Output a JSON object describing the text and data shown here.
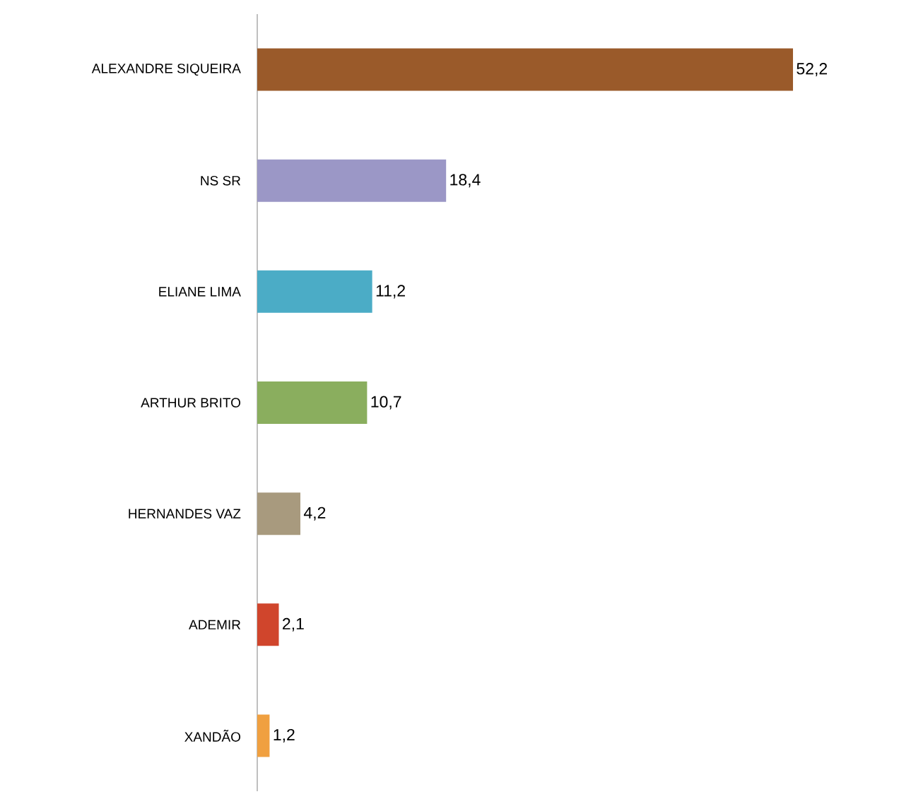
{
  "chart_data": {
    "type": "bar",
    "orientation": "horizontal",
    "categories": [
      "ALEXANDRE SIQUEIRA",
      "NS SR",
      "ELIANE LIMA",
      "ARTHUR BRITO",
      "HERNANDES VAZ",
      "ADEMIR",
      "XANDÃO"
    ],
    "values": [
      52.2,
      18.4,
      11.2,
      10.7,
      4.2,
      2.1,
      1.2
    ],
    "value_labels": [
      "52,2",
      "18,4",
      "11,2",
      "10,7",
      "4,2",
      "2,1",
      "1,2"
    ],
    "colors": [
      "#9a5a2a",
      "#9b97c6",
      "#4bacc6",
      "#8aae5e",
      "#a89a7e",
      "#d0452c",
      "#f0a040"
    ],
    "tick_labels": "y"
  }
}
